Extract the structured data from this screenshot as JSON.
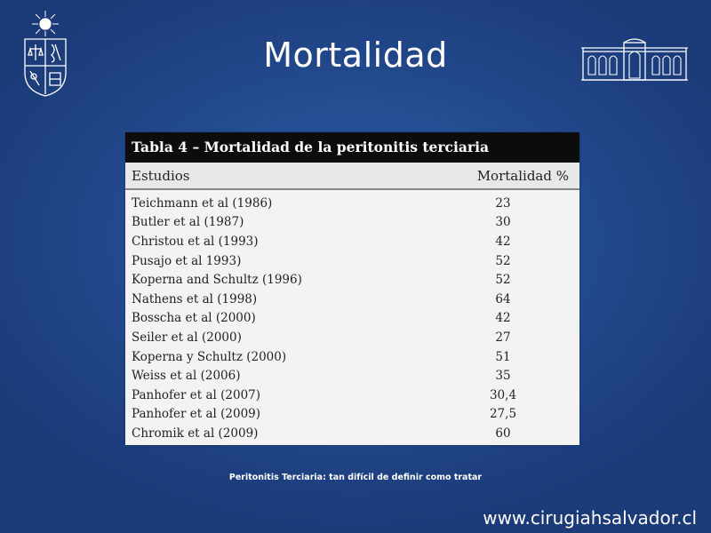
{
  "slide": {
    "title": "Mortalidad",
    "caption": "Peritonitis Terciaria: tan difícil de definir como tratar",
    "website": "www.cirugiahsalvador.cl"
  },
  "table": {
    "heading": "Tabla 4 – Mortalidad de la peritonitis terciaria",
    "columns": [
      "Estudios",
      "Mortalidad %"
    ],
    "rows": [
      {
        "study": "Teichmann et al (1986)",
        "mortality": "23"
      },
      {
        "study": "Butler et al (1987)",
        "mortality": "30"
      },
      {
        "study": "Christou et al (1993)",
        "mortality": "42"
      },
      {
        "study": "Pusajo et al 1993)",
        "mortality": "52"
      },
      {
        "study": "Koperna and Schultz (1996)",
        "mortality": "52"
      },
      {
        "study": "Nathens et al (1998)",
        "mortality": "64"
      },
      {
        "study": "Bosscha et al (2000)",
        "mortality": "42"
      },
      {
        "study": "Seiler et al (2000)",
        "mortality": "27"
      },
      {
        "study": "Koperna y Schultz (2000)",
        "mortality": "51"
      },
      {
        "study": "Weiss et al (2006)",
        "mortality": "35"
      },
      {
        "study": "Panhofer et al (2007)",
        "mortality": "30,4"
      },
      {
        "study": "Panhofer et al (2009)",
        "mortality": "27,5"
      },
      {
        "study": "Chromik et al (2009)",
        "mortality": "60"
      }
    ]
  },
  "icons": {
    "left_logo": "university-crest-icon",
    "right_logo": "hospital-building-icon"
  }
}
